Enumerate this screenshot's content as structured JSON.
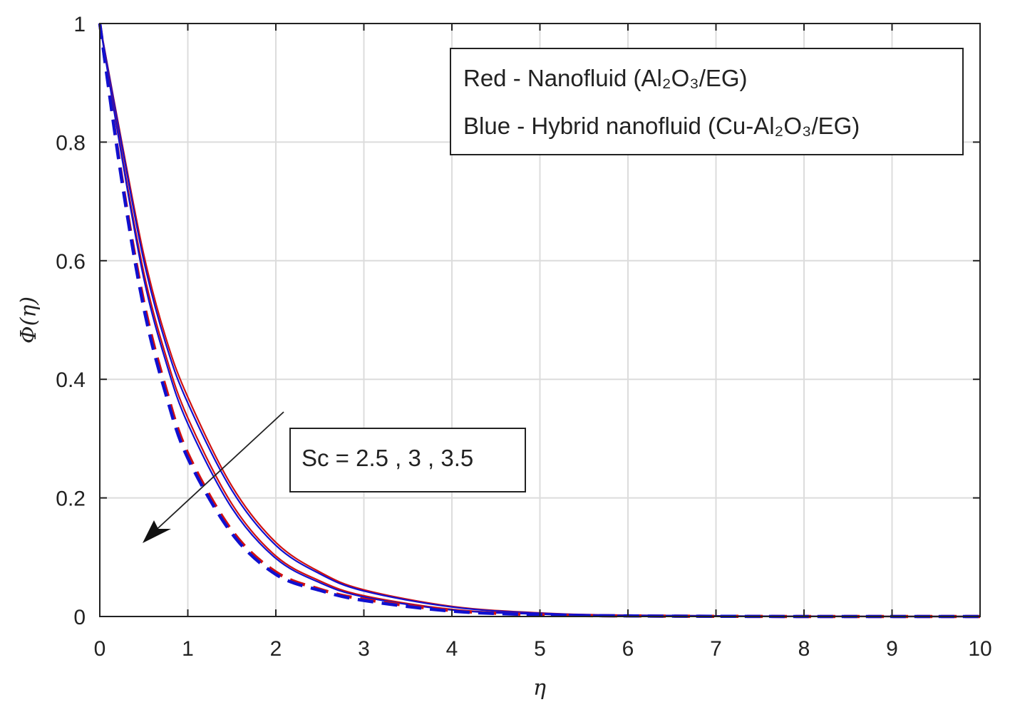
{
  "chart_data": {
    "type": "line",
    "xlabel": "η",
    "ylabel": "Φ(η)",
    "xlim": [
      0,
      10
    ],
    "ylim": [
      0,
      1
    ],
    "xticks": [
      "0",
      "1",
      "2",
      "3",
      "4",
      "5",
      "6",
      "7",
      "8",
      "9",
      "10"
    ],
    "yticks": [
      "0",
      "0.2",
      "0.4",
      "0.6",
      "0.8",
      "1"
    ],
    "grid": true,
    "legend": {
      "placement": "top-right",
      "entries": [
        "Red - Nanofluid (Al₂O₃/EG)",
        "Blue - Hybrid nanofluid (Cu-Al₂O₃/EG)"
      ]
    },
    "annotation": {
      "text": "Sc = 2.5 , 3 , 3.5",
      "arrow": "points toward decreasing Φ with increasing Sc"
    },
    "colors": {
      "nanofluid": "#d01010",
      "hybrid": "#1010d0"
    },
    "x": [
      0,
      0.25,
      0.5,
      0.75,
      1,
      1.5,
      2,
      2.5,
      3,
      4,
      5,
      6,
      8,
      10
    ],
    "series": [
      {
        "group": "Sc=2.5",
        "fluid": "nanofluid",
        "style": "solid",
        "values": [
          1,
          0.8,
          0.61,
          0.47,
          0.37,
          0.22,
          0.125,
          0.075,
          0.045,
          0.017,
          0.006,
          0.002,
          0.0003,
          0
        ]
      },
      {
        "group": "Sc=2.5",
        "fluid": "hybrid",
        "style": "solid",
        "values": [
          1,
          0.795,
          0.6,
          0.46,
          0.36,
          0.213,
          0.12,
          0.072,
          0.043,
          0.016,
          0.0055,
          0.002,
          0.0003,
          0
        ]
      },
      {
        "group": "Sc=3",
        "fluid": "nanofluid",
        "style": "solid",
        "values": [
          1,
          0.78,
          0.58,
          0.44,
          0.335,
          0.19,
          0.102,
          0.06,
          0.035,
          0.012,
          0.004,
          0.0015,
          0.0002,
          0
        ]
      },
      {
        "group": "Sc=3",
        "fluid": "hybrid",
        "style": "solid",
        "values": [
          1,
          0.775,
          0.57,
          0.43,
          0.325,
          0.183,
          0.098,
          0.057,
          0.033,
          0.011,
          0.004,
          0.0014,
          0.0002,
          0
        ]
      },
      {
        "group": "Sc=3.5",
        "fluid": "nanofluid",
        "style": "dashed",
        "values": [
          1,
          0.74,
          0.53,
          0.385,
          0.275,
          0.145,
          0.075,
          0.046,
          0.029,
          0.01,
          0.003,
          0.001,
          0,
          0
        ]
      },
      {
        "group": "Sc=3.5",
        "fluid": "hybrid",
        "style": "dashed",
        "values": [
          1,
          0.735,
          0.52,
          0.375,
          0.267,
          0.14,
          0.071,
          0.044,
          0.027,
          0.009,
          0.003,
          0.001,
          0,
          0
        ]
      }
    ]
  }
}
